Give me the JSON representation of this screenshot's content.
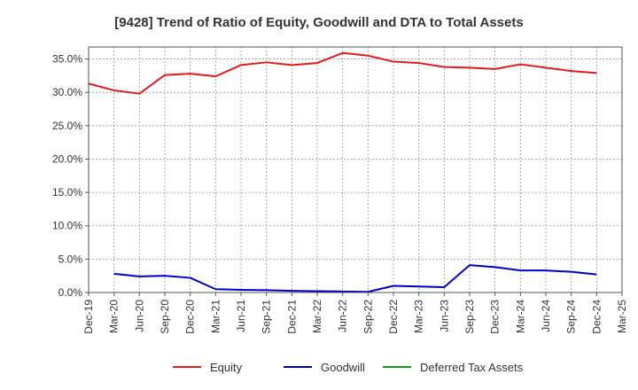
{
  "chart_data": {
    "type": "line",
    "title": "[9428]  Trend of Ratio of Equity, Goodwill and DTA to Total Assets",
    "xlabel": "",
    "ylabel": "",
    "categories": [
      "Dec-19",
      "Mar-20",
      "Jun-20",
      "Sep-20",
      "Dec-20",
      "Mar-21",
      "Jun-21",
      "Sep-21",
      "Dec-21",
      "Mar-22",
      "Jun-22",
      "Sep-22",
      "Dec-22",
      "Mar-23",
      "Jun-23",
      "Sep-23",
      "Dec-23",
      "Mar-24",
      "Jun-24",
      "Sep-24",
      "Dec-24",
      "Mar-25"
    ],
    "y_tick_labels": [
      "0.0%",
      "5.0%",
      "10.0%",
      "15.0%",
      "20.0%",
      "25.0%",
      "30.0%",
      "35.0%"
    ],
    "y_ticks": [
      0,
      5,
      10,
      15,
      20,
      25,
      30,
      35
    ],
    "ylim": [
      0,
      36.8
    ],
    "grid": true,
    "legend_position": "bottom",
    "series": [
      {
        "name": "Equity",
        "color": "#e31a1c",
        "values": [
          31.3,
          30.3,
          29.8,
          32.6,
          32.8,
          32.4,
          34.1,
          34.5,
          34.1,
          34.4,
          35.9,
          35.5,
          34.6,
          34.4,
          33.8,
          33.7,
          33.5,
          34.2,
          33.7,
          33.2,
          32.9,
          null
        ]
      },
      {
        "name": "Goodwill",
        "color": "#0000cc",
        "values": [
          null,
          2.8,
          2.4,
          2.5,
          2.2,
          0.5,
          0.4,
          0.35,
          0.25,
          0.2,
          0.15,
          0.1,
          1.0,
          0.9,
          0.8,
          4.1,
          3.8,
          3.3,
          3.3,
          3.1,
          2.7,
          null
        ]
      },
      {
        "name": "Deferred Tax Assets",
        "color": "#1a9a1a",
        "values": [
          null,
          null,
          null,
          null,
          null,
          null,
          null,
          null,
          null,
          null,
          null,
          null,
          null,
          null,
          null,
          null,
          null,
          null,
          null,
          null,
          null,
          null
        ]
      }
    ]
  }
}
